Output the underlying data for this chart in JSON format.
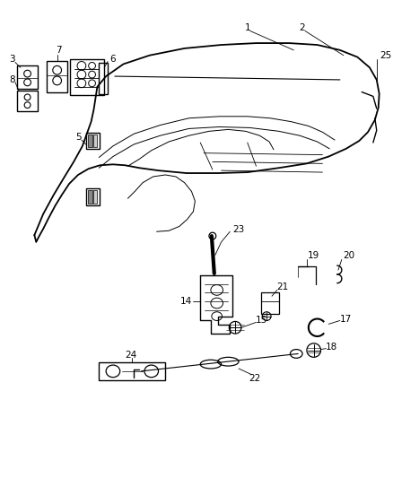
{
  "background_color": "#ffffff",
  "line_color": "#000000",
  "figsize": [
    4.38,
    5.33
  ],
  "dpi": 100,
  "label_fontsize": 7.5
}
